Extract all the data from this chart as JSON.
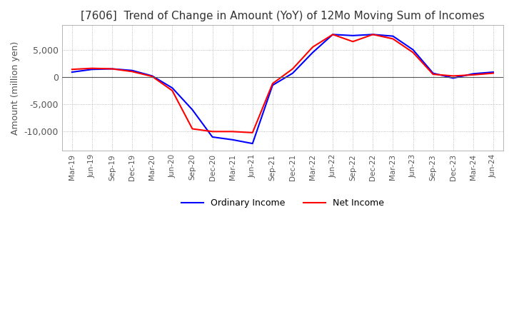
{
  "title": "[7606]  Trend of Change in Amount (YoY) of 12Mo Moving Sum of Incomes",
  "ylabel": "Amount (million yen)",
  "ylim": [
    -13500,
    9500
  ],
  "yticks": [
    -10000,
    -5000,
    0,
    5000
  ],
  "background_color": "#ffffff",
  "grid_color": "#aaaaaa",
  "ordinary_income_color": "#0000ff",
  "net_income_color": "#ff0000",
  "x_labels": [
    "Mar-19",
    "Jun-19",
    "Sep-19",
    "Dec-19",
    "Mar-20",
    "Jun-20",
    "Sep-20",
    "Dec-20",
    "Mar-21",
    "Jun-21",
    "Sep-21",
    "Dec-21",
    "Mar-22",
    "Jun-22",
    "Sep-22",
    "Dec-22",
    "Mar-23",
    "Jun-23",
    "Sep-23",
    "Dec-23",
    "Mar-24",
    "Jun-24"
  ],
  "ordinary_income": [
    900,
    1400,
    1500,
    1200,
    200,
    -2000,
    -6000,
    -11000,
    -11500,
    -12200,
    -1500,
    700,
    4500,
    7800,
    7600,
    7800,
    7500,
    5000,
    700,
    -200,
    600,
    900
  ],
  "net_income": [
    1400,
    1600,
    1500,
    1000,
    100,
    -2500,
    -9500,
    -10000,
    -10000,
    -10200,
    -1200,
    1500,
    5500,
    7800,
    6500,
    7800,
    7000,
    4500,
    500,
    200,
    400,
    700
  ]
}
